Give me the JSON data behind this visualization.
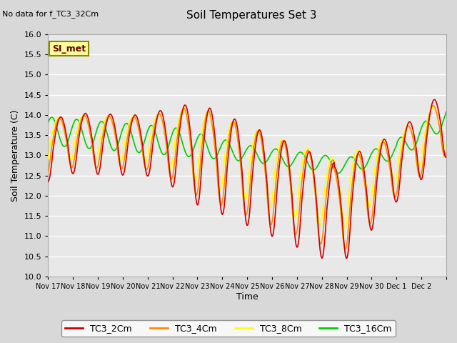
{
  "title": "Soil Temperatures Set 3",
  "top_note": "No data for f_TC3_32Cm",
  "ylabel": "Soil Temperature (C)",
  "xlabel": "Time",
  "ylim": [
    10.0,
    16.0
  ],
  "yticks": [
    10.0,
    10.5,
    11.0,
    11.5,
    12.0,
    12.5,
    13.0,
    13.5,
    14.0,
    14.5,
    15.0,
    15.5,
    16.0
  ],
  "xtick_labels": [
    "Nov 17",
    "Nov 18",
    "Nov 19",
    "Nov 20",
    "Nov 21",
    "Nov 22",
    "Nov 23",
    "Nov 24",
    "Nov 25",
    "Nov 26",
    "Nov 27",
    "Nov 28",
    "Nov 29",
    "Nov 30",
    "Dec 1",
    "Dec 2"
  ],
  "series_names": [
    "TC3_2Cm",
    "TC3_4Cm",
    "TC3_8Cm",
    "TC3_16Cm"
  ],
  "series_colors": [
    "#cc0000",
    "#ff8800",
    "#ffff00",
    "#00cc00"
  ],
  "line_width": 1.2,
  "bg_color": "#d8d8d8",
  "plot_bg_color": "#e8e8e8",
  "grid_color": "#ffffff",
  "legend_label": "SI_met",
  "legend_bg": "#ffff99",
  "legend_border": "#888800"
}
